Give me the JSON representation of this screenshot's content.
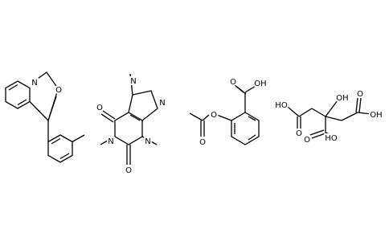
{
  "molecules": [
    {
      "atoms": [
        "N",
        "O"
      ]
    },
    {
      "atoms": [
        "N",
        "N",
        "N",
        "N",
        "O",
        "O"
      ]
    },
    {
      "atoms": [
        "O",
        "OH",
        "O",
        "O"
      ]
    },
    {
      "atoms": [
        "HO",
        "O",
        "OH",
        "O",
        "HO",
        "O",
        "OH"
      ]
    }
  ]
}
